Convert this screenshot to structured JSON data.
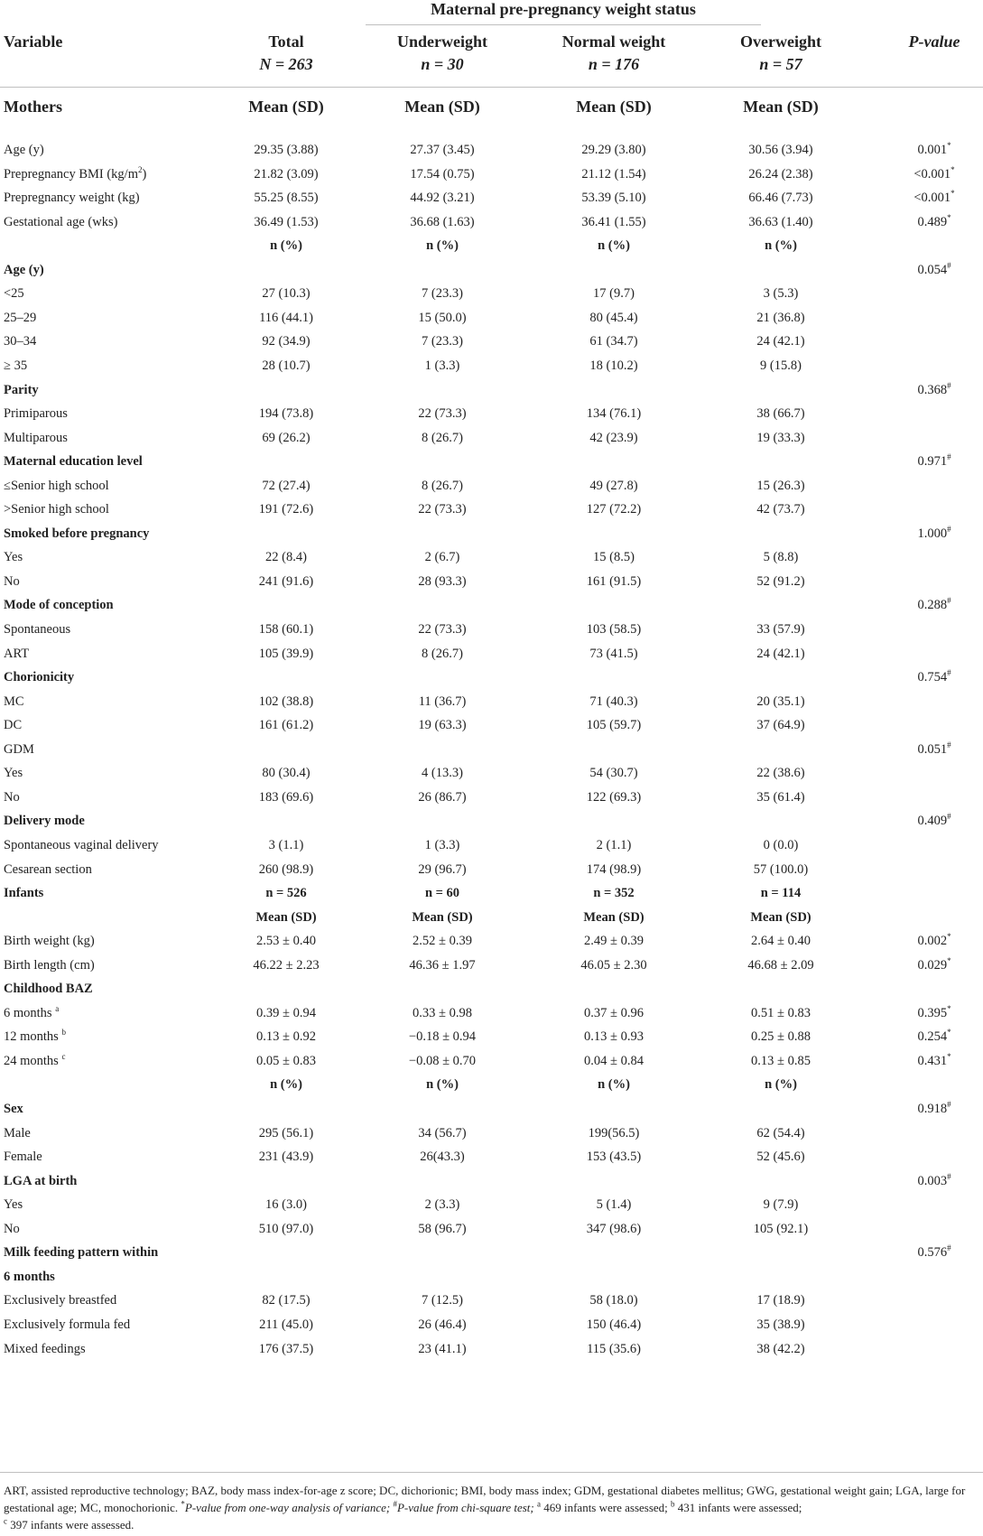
{
  "header": {
    "group_label": "Maternal pre-pregnancy weight status",
    "variable": "Variable",
    "total": "Total",
    "total_n": "N = 263",
    "under": "Underweight",
    "under_n": "n = 30",
    "normal": "Normal weight",
    "normal_n": "n = 176",
    "over": "Overweight",
    "over_n": "n = 57",
    "pvalue": "P-value"
  },
  "rows": [
    {
      "style": "big",
      "cells": [
        "Mothers",
        "Mean (SD)",
        "Mean (SD)",
        "Mean (SD)",
        "Mean (SD)",
        ""
      ]
    },
    {
      "style": "",
      "cells": [
        "Age (y)",
        "29.35 (3.88)",
        "27.37 (3.45)",
        "29.29 (3.80)",
        "30.56 (3.94)",
        "0.001"
      ],
      "psup": "*"
    },
    {
      "style": "",
      "cells": [
        "Prepregnancy BMI (kg/m",
        "21.82 (3.09)",
        "17.54 (0.75)",
        "21.12 (1.54)",
        "26.24 (2.38)",
        "<0.001"
      ],
      "lsup": "2",
      "lsuffix": ")",
      "psup": "*"
    },
    {
      "style": "",
      "cells": [
        "Prepregnancy weight (kg)",
        "55.25 (8.55)",
        "44.92 (3.21)",
        "53.39 (5.10)",
        "66.46 (7.73)",
        "<0.001"
      ],
      "psup": "*"
    },
    {
      "style": "",
      "cells": [
        "Gestational age (wks)",
        "36.49 (1.53)",
        "36.68 (1.63)",
        "36.41 (1.55)",
        "36.63 (1.40)",
        "0.489"
      ],
      "psup": "*"
    },
    {
      "style": "midhead",
      "cells": [
        "",
        "n (%)",
        "n (%)",
        "n (%)",
        "n (%)",
        ""
      ]
    },
    {
      "style": "section",
      "cells": [
        "Age (y)",
        "",
        "",
        "",
        "",
        "0.054"
      ],
      "psup": "#"
    },
    {
      "style": "",
      "cells": [
        "<25",
        "27 (10.3)",
        "7 (23.3)",
        "17 (9.7)",
        "3 (5.3)",
        ""
      ]
    },
    {
      "style": "",
      "cells": [
        "25–29",
        "116 (44.1)",
        "15 (50.0)",
        "80 (45.4)",
        "21 (36.8)",
        ""
      ]
    },
    {
      "style": "",
      "cells": [
        "30–34",
        "92 (34.9)",
        "7 (23.3)",
        "61 (34.7)",
        "24 (42.1)",
        ""
      ]
    },
    {
      "style": "",
      "cells": [
        "≥ 35",
        "28 (10.7)",
        "1 (3.3)",
        "18 (10.2)",
        "9 (15.8)",
        ""
      ]
    },
    {
      "style": "section",
      "cells": [
        "Parity",
        "",
        "",
        "",
        "",
        "0.368"
      ],
      "psup": "#"
    },
    {
      "style": "",
      "cells": [
        "Primiparous",
        "194 (73.8)",
        "22 (73.3)",
        "134 (76.1)",
        "38 (66.7)",
        ""
      ]
    },
    {
      "style": "",
      "cells": [
        "Multiparous",
        "69 (26.2)",
        "8 (26.7)",
        "42 (23.9)",
        "19 (33.3)",
        ""
      ]
    },
    {
      "style": "section",
      "cells": [
        "Maternal education level",
        "",
        "",
        "",
        "",
        "0.971"
      ],
      "psup": "#"
    },
    {
      "style": "",
      "cells": [
        "≤Senior high school",
        "72 (27.4)",
        "8 (26.7)",
        "49 (27.8)",
        "15 (26.3)",
        ""
      ]
    },
    {
      "style": "",
      "cells": [
        ">Senior high school",
        "191 (72.6)",
        "22 (73.3)",
        "127 (72.2)",
        "42 (73.7)",
        ""
      ]
    },
    {
      "style": "section",
      "cells": [
        "Smoked before pregnancy",
        "",
        "",
        "",
        "",
        "1.000"
      ],
      "psup": "#"
    },
    {
      "style": "",
      "cells": [
        "Yes",
        "22 (8.4)",
        "2 (6.7)",
        "15 (8.5)",
        "5 (8.8)",
        ""
      ]
    },
    {
      "style": "",
      "cells": [
        "No",
        "241 (91.6)",
        "28 (93.3)",
        "161 (91.5)",
        "52 (91.2)",
        ""
      ]
    },
    {
      "style": "section",
      "cells": [
        "Mode of conception",
        "",
        "",
        "",
        "",
        "0.288"
      ],
      "psup": "#"
    },
    {
      "style": "",
      "cells": [
        "Spontaneous",
        "158 (60.1)",
        "22 (73.3)",
        "103 (58.5)",
        "33 (57.9)",
        ""
      ]
    },
    {
      "style": "",
      "cells": [
        "ART",
        "105 (39.9)",
        "8 (26.7)",
        "73 (41.5)",
        "24 (42.1)",
        ""
      ]
    },
    {
      "style": "section",
      "cells": [
        "Chorionicity",
        "",
        "",
        "",
        "",
        "0.754"
      ],
      "psup": "#"
    },
    {
      "style": "",
      "cells": [
        "MC",
        "102 (38.8)",
        "11 (36.7)",
        "71 (40.3)",
        "20 (35.1)",
        ""
      ]
    },
    {
      "style": "",
      "cells": [
        "DC",
        "161 (61.2)",
        "19 (63.3)",
        "105 (59.7)",
        "37 (64.9)",
        ""
      ]
    },
    {
      "style": "",
      "cells": [
        "GDM",
        "",
        "",
        "",
        "",
        "0.051"
      ],
      "psup": "#"
    },
    {
      "style": "",
      "cells": [
        "Yes",
        "80 (30.4)",
        "4 (13.3)",
        "54 (30.7)",
        "22 (38.6)",
        ""
      ]
    },
    {
      "style": "",
      "cells": [
        "No",
        "183 (69.6)",
        "26 (86.7)",
        "122 (69.3)",
        "35 (61.4)",
        ""
      ]
    },
    {
      "style": "section",
      "cells": [
        "Delivery mode",
        "",
        "",
        "",
        "",
        "0.409"
      ],
      "psup": "#"
    },
    {
      "style": "",
      "cells": [
        "Spontaneous vaginal delivery",
        "3 (1.1)",
        "1 (3.3)",
        "2 (1.1)",
        "0 (0.0)",
        ""
      ]
    },
    {
      "style": "",
      "cells": [
        "Cesarean section",
        "260 (98.9)",
        "29 (96.7)",
        "174 (98.9)",
        "57 (100.0)",
        ""
      ]
    },
    {
      "style": "bold",
      "cells": [
        "Infants",
        "n = 526",
        "n = 60",
        "n = 352",
        "n = 114",
        ""
      ]
    },
    {
      "style": "midhead",
      "cells": [
        "",
        "Mean (SD)",
        "Mean (SD)",
        "Mean (SD)",
        "Mean (SD)",
        ""
      ]
    },
    {
      "style": "",
      "cells": [
        "Birth weight (kg)",
        "2.53 ± 0.40",
        "2.52 ± 0.39",
        "2.49 ± 0.39",
        "2.64 ± 0.40",
        "0.002"
      ],
      "psup": "*"
    },
    {
      "style": "",
      "cells": [
        "Birth length (cm)",
        "46.22 ± 2.23",
        "46.36 ± 1.97",
        "46.05 ± 2.30",
        "46.68 ± 2.09",
        "0.029"
      ],
      "psup": "*"
    },
    {
      "style": "section",
      "cells": [
        "Childhood BAZ",
        "",
        "",
        "",
        "",
        ""
      ]
    },
    {
      "style": "",
      "cells": [
        "6 months ",
        "0.39 ± 0.94",
        "0.33 ± 0.98",
        "0.37 ± 0.96",
        "0.51 ± 0.83",
        "0.395"
      ],
      "lsup": "a",
      "psup": "*"
    },
    {
      "style": "",
      "cells": [
        "12 months ",
        "0.13 ± 0.92",
        "−0.18 ± 0.94",
        "0.13 ± 0.93",
        "0.25 ± 0.88",
        "0.254"
      ],
      "lsup": "b",
      "psup": "*"
    },
    {
      "style": "",
      "cells": [
        "24 months ",
        "0.05 ± 0.83",
        "−0.08 ± 0.70",
        "0.04 ± 0.84",
        "0.13 ± 0.85",
        "0.431"
      ],
      "lsup": "c",
      "psup": "*"
    },
    {
      "style": "midhead",
      "cells": [
        "",
        "n (%)",
        "n (%)",
        "n (%)",
        "n (%)",
        ""
      ]
    },
    {
      "style": "section",
      "cells": [
        "Sex",
        "",
        "",
        "",
        "",
        "0.918"
      ],
      "psup": "#"
    },
    {
      "style": "",
      "cells": [
        "Male",
        "295 (56.1)",
        "34 (56.7)",
        "199(56.5)",
        "62 (54.4)",
        ""
      ]
    },
    {
      "style": "",
      "cells": [
        "Female",
        "231 (43.9)",
        "26(43.3)",
        "153 (43.5)",
        "52 (45.6)",
        ""
      ]
    },
    {
      "style": "section",
      "cells": [
        "LGA at birth",
        "",
        "",
        "",
        "",
        "0.003"
      ],
      "psup": "#"
    },
    {
      "style": "",
      "cells": [
        "Yes",
        "16 (3.0)",
        "2 (3.3)",
        "5 (1.4)",
        "9 (7.9)",
        ""
      ]
    },
    {
      "style": "",
      "cells": [
        "No",
        "510 (97.0)",
        "58 (96.7)",
        "347 (98.6)",
        "105 (92.1)",
        ""
      ]
    },
    {
      "style": "section",
      "cells": [
        "Milk feeding pattern within",
        "",
        "",
        "",
        "",
        "0.576"
      ],
      "psup": "#"
    },
    {
      "style": "section",
      "cells": [
        "6 months",
        "",
        "",
        "",
        "",
        ""
      ]
    },
    {
      "style": "",
      "cells": [
        "Exclusively breastfed",
        "82 (17.5)",
        "7 (12.5)",
        "58 (18.0)",
        "17 (18.9)",
        ""
      ]
    },
    {
      "style": "",
      "cells": [
        "Exclusively formula fed",
        "211 (45.0)",
        "26 (46.4)",
        "150 (46.4)",
        "35 (38.9)",
        ""
      ]
    },
    {
      "style": "",
      "cells": [
        "Mixed feedings",
        "176 (37.5)",
        "23 (41.1)",
        "115 (35.6)",
        "38 (42.2)",
        ""
      ]
    }
  ],
  "footnote": {
    "line1": "ART, assisted reproductive technology; BAZ, body mass index-for-age z score; DC, dichorionic; BMI, body mass index; GDM, gestational diabetes mellitus; GWG, gestational weight gain;",
    "line2a": "LGA, large for gestational age; MC, monochorionic. ",
    "star": "*",
    "line2b": "P-value from one-way analysis of variance; ",
    "hash": "#",
    "line2c": "P-value from chi-square test; ",
    "sa": "a",
    "line2d": " 469 infants were assessed; ",
    "sb": "b",
    "line2e": " 431 infants were assessed;",
    "sc": "c",
    "line3": " 397 infants were assessed."
  },
  "colors": {
    "rule": "#bfbfbf",
    "text": "#222222"
  }
}
